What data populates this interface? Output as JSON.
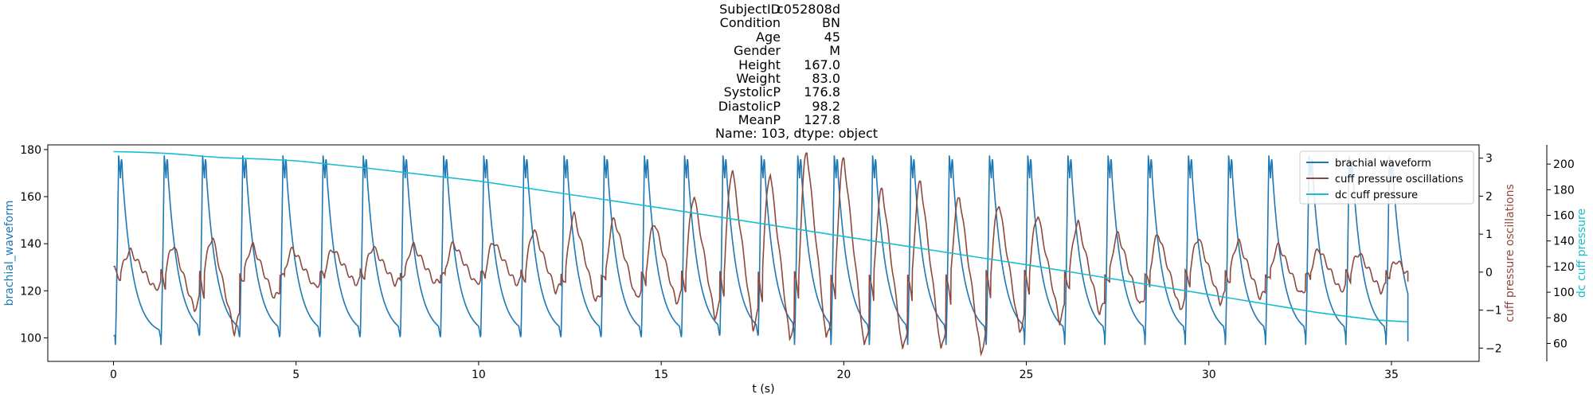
{
  "header": {
    "rows": [
      {
        "key": "SubjectID",
        "value": "c052808d"
      },
      {
        "key": "Condition",
        "value": "BN"
      },
      {
        "key": "Age",
        "value": "45"
      },
      {
        "key": "Gender",
        "value": "M"
      },
      {
        "key": "Height",
        "value": "167.0"
      },
      {
        "key": "Weight",
        "value": "83.0"
      },
      {
        "key": "SystolicP",
        "value": "176.8"
      },
      {
        "key": "DiastolicP",
        "value": "98.2"
      },
      {
        "key": "MeanP",
        "value": "127.8"
      }
    ],
    "footer": "Name: 103, dtype: object"
  },
  "chart_data": {
    "type": "line",
    "title": "",
    "xlabel": "t (s)",
    "ylabel_left": "brachial_waveform",
    "ylabel_right_inner": "cuff pressure oscillations",
    "ylabel_right_outer": "dc cuff pressure",
    "xlim": [
      -1.8,
      37.4
    ],
    "xticks": [
      0,
      5,
      10,
      15,
      20,
      25,
      30,
      35
    ],
    "yaxes": {
      "left": {
        "lim": [
          90,
          182
        ],
        "ticks": [
          100,
          120,
          140,
          160,
          180
        ]
      },
      "right_inner": {
        "lim": [
          -2.35,
          3.35
        ],
        "ticks": [
          -2,
          -1,
          0,
          1,
          2,
          3
        ]
      },
      "right_outer": {
        "lim": [
          46,
          215
        ],
        "ticks": [
          60,
          80,
          100,
          120,
          140,
          160,
          180,
          200
        ]
      }
    },
    "legend": {
      "position": "top-right",
      "entries": [
        "brachial waveform",
        "cuff pressure oscillations",
        "dc cuff pressure"
      ]
    },
    "series": [
      {
        "name": "brachial waveform",
        "color": "#1f77b4",
        "axis": "left",
        "beat_times": [
          0.05,
          1.3,
          2.35,
          3.45,
          4.55,
          5.65,
          6.75,
          7.85,
          8.95,
          10.05,
          11.15,
          12.25,
          13.35,
          14.45,
          15.55,
          16.6,
          17.65,
          18.65,
          19.65,
          20.7,
          21.75,
          22.8,
          23.9,
          24.95,
          26.05,
          27.15,
          28.25,
          29.35,
          30.45,
          31.55,
          32.65,
          33.75,
          34.85
        ],
        "systolic": 177.5,
        "diastolic_min": 97.0,
        "t_end": 35.45,
        "end_value": 98.5
      },
      {
        "name": "cuff pressure oscillations",
        "color": "#8c4a3f",
        "axis": "right_inner",
        "beat_amplitudes": [
          {
            "t": 0.05,
            "peak": 0.55,
            "trough": -0.45
          },
          {
            "t": 1.3,
            "peak": 0.7,
            "trough": -1.0
          },
          {
            "t": 2.35,
            "peak": 0.9,
            "trough": -1.6
          },
          {
            "t": 3.45,
            "peak": 0.7,
            "trough": -0.7
          },
          {
            "t": 4.55,
            "peak": 0.6,
            "trough": -0.4
          },
          {
            "t": 5.65,
            "peak": 0.6,
            "trough": -0.3
          },
          {
            "t": 6.75,
            "peak": 0.65,
            "trough": -0.3
          },
          {
            "t": 7.85,
            "peak": 0.7,
            "trough": -0.3
          },
          {
            "t": 8.95,
            "peak": 0.75,
            "trough": -0.3
          },
          {
            "t": 10.05,
            "peak": 0.8,
            "trough": -0.3
          },
          {
            "t": 11.15,
            "peak": 1.1,
            "trough": -0.5
          },
          {
            "t": 12.25,
            "peak": 1.5,
            "trough": -0.8
          },
          {
            "t": 13.35,
            "peak": 1.4,
            "trough": -0.7
          },
          {
            "t": 14.45,
            "peak": 1.3,
            "trough": -0.8
          },
          {
            "t": 15.55,
            "peak": 2.0,
            "trough": -1.2
          },
          {
            "t": 16.6,
            "peak": 2.7,
            "trough": -1.5
          },
          {
            "t": 17.65,
            "peak": 2.6,
            "trough": -1.8
          },
          {
            "t": 18.65,
            "peak": 3.2,
            "trough": -1.8
          },
          {
            "t": 19.65,
            "peak": 3.0,
            "trough": -2.0
          },
          {
            "t": 20.7,
            "peak": 2.2,
            "trough": -2.1
          },
          {
            "t": 21.75,
            "peak": 2.4,
            "trough": -2.1
          },
          {
            "t": 22.8,
            "peak": 2.0,
            "trough": -2.2
          },
          {
            "t": 23.9,
            "peak": 1.8,
            "trough": -1.6
          },
          {
            "t": 24.95,
            "peak": 1.5,
            "trough": -1.3
          },
          {
            "t": 26.05,
            "peak": 1.3,
            "trough": -1.1
          },
          {
            "t": 27.15,
            "peak": 1.0,
            "trough": -0.9
          },
          {
            "t": 28.25,
            "peak": 1.0,
            "trough": -1.0
          },
          {
            "t": 29.35,
            "peak": 0.9,
            "trough": -0.8
          },
          {
            "t": 30.45,
            "peak": 0.8,
            "trough": -0.7
          },
          {
            "t": 31.55,
            "peak": 0.7,
            "trough": -0.6
          },
          {
            "t": 32.65,
            "peak": 0.6,
            "trough": -0.5
          },
          {
            "t": 33.75,
            "peak": 0.5,
            "trough": -0.5
          },
          {
            "t": 34.85,
            "peak": 0.3,
            "trough": -0.3
          }
        ],
        "t_end": 35.45,
        "end_value": -0.25
      },
      {
        "name": "dc cuff pressure",
        "color": "#17becf",
        "axis": "right_outer",
        "x": [
          0,
          0.5,
          1.0,
          1.5,
          2.0,
          2.5,
          3.0,
          4.0,
          5.0,
          7.0,
          10.0,
          15.0,
          20.0,
          25.0,
          30.0,
          33.0,
          34.5,
          35.45
        ],
        "values": [
          209.7,
          209.5,
          209.0,
          208.3,
          207.3,
          206.0,
          205.0,
          204.0,
          202.6,
          196.7,
          186.8,
          165.7,
          143.5,
          121.4,
          98.1,
          84.0,
          78.5,
          76.8
        ]
      }
    ]
  }
}
